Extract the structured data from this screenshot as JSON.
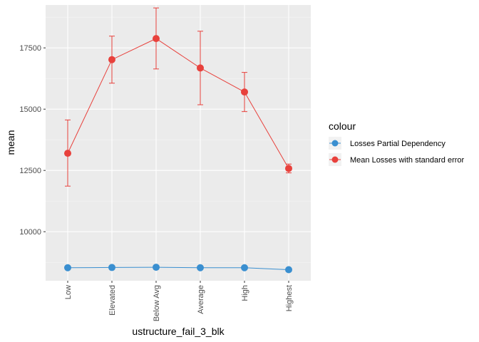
{
  "chart_data": {
    "type": "line",
    "xlabel": "ustructure_fail_3_blk",
    "ylabel": "mean",
    "categories": [
      "Low",
      "Elevated",
      "Below Avg",
      "Average",
      "High",
      "Highest"
    ],
    "ylim": [
      8000,
      19250
    ],
    "yticks": [
      10000,
      12500,
      15000,
      17500
    ],
    "ytick_labels": [
      "10000",
      "12500",
      "15000",
      "17500"
    ],
    "grid": true,
    "legend": {
      "title": "colour",
      "position": "right"
    },
    "series": [
      {
        "name": "Losses Partial Dependency",
        "color": "#3a8fd0",
        "values": [
          8530,
          8540,
          8550,
          8530,
          8530,
          8450
        ]
      },
      {
        "name": "Mean Losses with standard error",
        "color": "#e8413c",
        "values": [
          13200,
          17020,
          17880,
          16680,
          15700,
          12580
        ],
        "error_low": [
          11860,
          16060,
          16640,
          15180,
          14900,
          12400
        ],
        "error_high": [
          14560,
          17980,
          19130,
          18180,
          16500,
          12760
        ]
      }
    ]
  }
}
